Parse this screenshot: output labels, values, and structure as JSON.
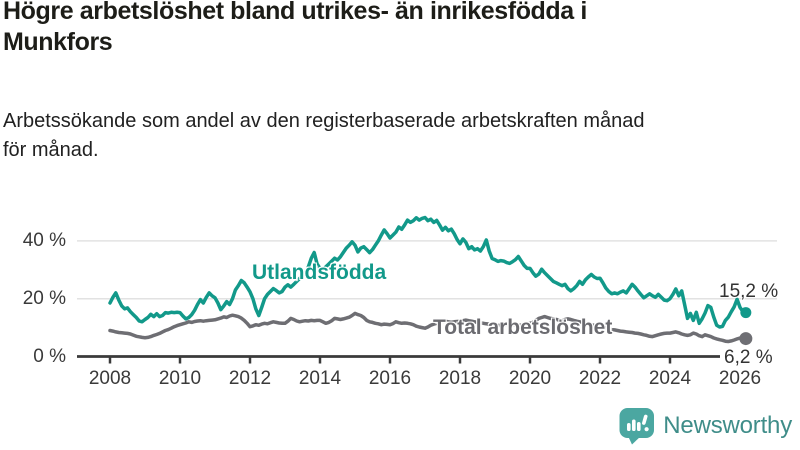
{
  "header": {
    "title": "Högre arbetslöshet bland utrikes- än inrikesfödda i\nMunkfors",
    "subtitle": "Arbetssökande som andel av den registerbaserade arbetskraften månad\nför månad."
  },
  "branding": {
    "name": "Newsworthy",
    "icon": "bar-chart-speech-bubble-icon",
    "icon_color": "#4ba7a1",
    "text_color": "#3f8d89"
  },
  "chart_data": {
    "type": "line",
    "grid": "horizontal",
    "x_axis": {
      "start_year": 2008,
      "step_months": 1,
      "tick_years": [
        2008,
        2010,
        2012,
        2014,
        2016,
        2018,
        2020,
        2022,
        2024,
        2026
      ],
      "labels": [
        "2008",
        "2010",
        "2012",
        "2014",
        "2016",
        "2018",
        "2020",
        "2022",
        "2024",
        "2026"
      ]
    },
    "y_axis": {
      "unit": "%",
      "values": [
        0,
        20,
        40
      ],
      "labels": [
        "0 %",
        "20 %",
        "40 %"
      ],
      "max": 50
    },
    "series": [
      {
        "name": "Total arbetslöshet",
        "color": "#6e6e73",
        "end_label": "6,2 %",
        "end_value": 6.2,
        "dot_radius": 6.5,
        "values": [
          9.0,
          8.8,
          8.5,
          8.3,
          8.2,
          8.1,
          8.0,
          7.8,
          7.4,
          7.0,
          6.8,
          6.6,
          6.5,
          6.6,
          6.9,
          7.3,
          7.6,
          8.0,
          8.5,
          9.0,
          9.3,
          9.8,
          10.3,
          10.7,
          11.0,
          11.3,
          11.6,
          12.0,
          11.8,
          12.1,
          12.3,
          12.4,
          12.2,
          12.4,
          12.5,
          12.6,
          12.7,
          13.0,
          13.3,
          13.7,
          13.5,
          14.0,
          14.3,
          14.1,
          13.8,
          13.3,
          12.5,
          11.5,
          10.3,
          10.6,
          11.0,
          10.8,
          11.2,
          11.5,
          11.3,
          11.7,
          12.0,
          11.8,
          11.6,
          11.5,
          11.5,
          12.2,
          13.2,
          12.8,
          12.3,
          12.0,
          12.2,
          12.4,
          12.3,
          12.5,
          12.4,
          12.5,
          12.5,
          12.0,
          11.5,
          11.8,
          12.4,
          13.2,
          13.0,
          12.8,
          13.0,
          13.3,
          13.6,
          14.2,
          14.9,
          14.5,
          14.2,
          13.5,
          12.5,
          12.0,
          11.8,
          11.5,
          11.3,
          11.0,
          11.2,
          11.1,
          11.0,
          11.4,
          12.0,
          11.7,
          11.5,
          11.6,
          11.5,
          11.3,
          11.0,
          10.5,
          10.2,
          10.0,
          9.8,
          10.2,
          10.8,
          11.2,
          11.5,
          11.8,
          12.0,
          12.2,
          12.0,
          11.8,
          12.0,
          12.1,
          12.2,
          12.4,
          12.6,
          12.4,
          12.2,
          12.0,
          11.8,
          11.6,
          11.5,
          11.3,
          11.2,
          11.0,
          11.0,
          10.8,
          10.7,
          10.8,
          11.0,
          11.2,
          11.0,
          10.8,
          10.7,
          10.9,
          11.0,
          11.2,
          11.5,
          11.8,
          12.5,
          13.2,
          13.5,
          13.8,
          13.5,
          13.2,
          13.0,
          12.8,
          12.6,
          12.5,
          12.8,
          13.0,
          12.8,
          12.5,
          12.2,
          12.0,
          11.8,
          11.5,
          11.2,
          11.0,
          10.8,
          10.5,
          10.3,
          10.0,
          9.8,
          9.5,
          9.3,
          9.2,
          9.0,
          8.8,
          8.7,
          8.5,
          8.4,
          8.3,
          8.1,
          8.0,
          7.8,
          7.5,
          7.3,
          7.0,
          6.9,
          7.2,
          7.5,
          7.8,
          8.0,
          8.1,
          8.1,
          8.3,
          8.5,
          8.2,
          7.8,
          7.5,
          7.3,
          7.5,
          8.1,
          7.8,
          7.2,
          6.9,
          7.5,
          7.2,
          6.9,
          6.4,
          6.1,
          5.8,
          5.6,
          5.3,
          5.2,
          5.4,
          5.7,
          6.1,
          6.4,
          6.3,
          6.2
        ]
      },
      {
        "name": "Utlandsfödda",
        "color": "#12998a",
        "end_label": "15,2 %",
        "end_value": 15.2,
        "dot_radius": 5.5,
        "values": [
          18.5,
          20.5,
          22.0,
          19.5,
          17.5,
          16.5,
          16.8,
          15.5,
          14.5,
          13.5,
          12.3,
          12.0,
          12.8,
          13.5,
          14.6,
          13.8,
          14.8,
          13.8,
          14.2,
          15.2,
          15.0,
          15.3,
          15.2,
          15.3,
          15.2,
          14.0,
          13.0,
          13.5,
          14.5,
          16.0,
          18.0,
          19.7,
          18.5,
          20.5,
          22.0,
          21.0,
          20.3,
          18.5,
          16.2,
          17.5,
          19.0,
          18.0,
          20.0,
          23.0,
          24.5,
          26.3,
          25.5,
          24.0,
          22.4,
          20.0,
          16.5,
          14.2,
          17.0,
          20.0,
          21.5,
          22.5,
          23.5,
          22.8,
          22.0,
          22.5,
          24.0,
          24.8,
          24.0,
          25.0,
          26.0,
          27.0,
          28.0,
          29.0,
          31.0,
          34.0,
          36.0,
          32.0,
          30.5,
          30.0,
          31.0,
          32.0,
          33.0,
          34.0,
          33.4,
          34.5,
          36.0,
          37.5,
          38.5,
          39.7,
          38.5,
          36.2,
          37.5,
          38.0,
          37.0,
          35.9,
          37.0,
          38.5,
          40.0,
          42.0,
          43.8,
          42.5,
          41.0,
          42.0,
          43.0,
          44.8,
          44.0,
          45.5,
          47.2,
          46.4,
          47.0,
          48.0,
          47.2,
          47.8,
          48.1,
          47.0,
          47.5,
          46.4,
          47.1,
          45.5,
          43.7,
          44.7,
          43.5,
          44.1,
          42.5,
          40.5,
          39.0,
          40.7,
          39.5,
          37.3,
          38.0,
          36.9,
          37.3,
          36.5,
          38.0,
          40.3,
          36.5,
          33.9,
          33.5,
          32.9,
          33.2,
          33.0,
          32.5,
          32.2,
          32.8,
          33.5,
          34.6,
          33.0,
          31.5,
          30.5,
          30.5,
          29.0,
          27.8,
          28.5,
          30.2,
          29.0,
          28.0,
          27.0,
          26.0,
          25.5,
          25.0,
          24.5,
          25.0,
          23.5,
          22.7,
          23.5,
          24.5,
          26.0,
          25.0,
          26.5,
          27.5,
          28.4,
          27.5,
          27.0,
          27.1,
          25.5,
          23.7,
          22.5,
          21.7,
          22.0,
          21.7,
          22.3,
          22.7,
          22.0,
          23.5,
          25.0,
          24.0,
          22.7,
          21.5,
          20.3,
          21.0,
          21.7,
          21.0,
          20.5,
          21.5,
          20.5,
          19.5,
          19.3,
          20.0,
          21.5,
          23.4,
          21.0,
          22.7,
          18.0,
          13.2,
          14.9,
          12.5,
          15.3,
          11.5,
          13.0,
          15.0,
          17.6,
          17.0,
          13.6,
          10.8,
          10.2,
          10.4,
          12.5,
          13.6,
          15.5,
          17.2,
          19.8,
          17.0,
          15.5,
          15.2
        ]
      }
    ]
  }
}
